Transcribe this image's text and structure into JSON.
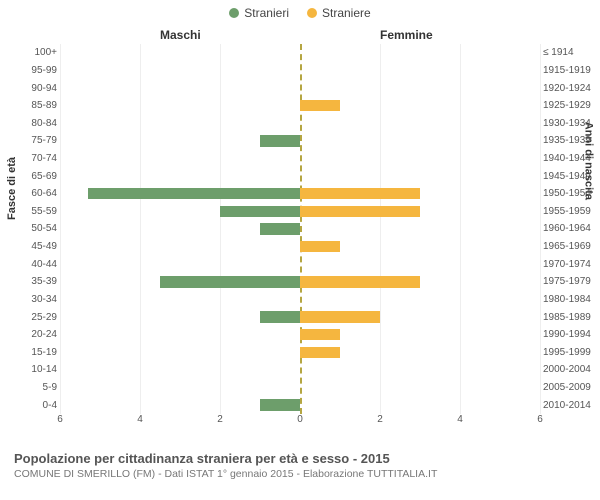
{
  "legend": {
    "male": {
      "label": "Stranieri",
      "color": "#6d9e6b"
    },
    "female": {
      "label": "Straniere",
      "color": "#f5b63f"
    }
  },
  "gender_headers": {
    "male": "Maschi",
    "female": "Femmine"
  },
  "axis_titles": {
    "left": "Fasce di età",
    "right": "Anni di nascita"
  },
  "chart": {
    "type": "pyramid-bar",
    "background_color": "#ffffff",
    "grid_color": "#eeeeee",
    "centerline_color": "#b5a642",
    "male_color": "#6d9e6b",
    "female_color": "#f5b63f",
    "xmax": 6,
    "xticks": [
      6,
      4,
      2,
      0,
      2,
      4,
      6
    ],
    "rows": [
      {
        "age": "100+",
        "birth": "≤ 1914",
        "m": 0,
        "f": 0
      },
      {
        "age": "95-99",
        "birth": "1915-1919",
        "m": 0,
        "f": 0
      },
      {
        "age": "90-94",
        "birth": "1920-1924",
        "m": 0,
        "f": 0
      },
      {
        "age": "85-89",
        "birth": "1925-1929",
        "m": 0,
        "f": 1
      },
      {
        "age": "80-84",
        "birth": "1930-1934",
        "m": 0,
        "f": 0
      },
      {
        "age": "75-79",
        "birth": "1935-1939",
        "m": 1,
        "f": 0
      },
      {
        "age": "70-74",
        "birth": "1940-1944",
        "m": 0,
        "f": 0
      },
      {
        "age": "65-69",
        "birth": "1945-1949",
        "m": 0,
        "f": 0
      },
      {
        "age": "60-64",
        "birth": "1950-1954",
        "m": 5.3,
        "f": 3
      },
      {
        "age": "55-59",
        "birth": "1955-1959",
        "m": 2,
        "f": 3
      },
      {
        "age": "50-54",
        "birth": "1960-1964",
        "m": 1,
        "f": 0
      },
      {
        "age": "45-49",
        "birth": "1965-1969",
        "m": 0,
        "f": 1
      },
      {
        "age": "40-44",
        "birth": "1970-1974",
        "m": 0,
        "f": 0
      },
      {
        "age": "35-39",
        "birth": "1975-1979",
        "m": 3.5,
        "f": 3
      },
      {
        "age": "30-34",
        "birth": "1980-1984",
        "m": 0,
        "f": 0
      },
      {
        "age": "25-29",
        "birth": "1985-1989",
        "m": 1,
        "f": 2
      },
      {
        "age": "20-24",
        "birth": "1990-1994",
        "m": 0,
        "f": 1
      },
      {
        "age": "15-19",
        "birth": "1995-1999",
        "m": 0,
        "f": 1
      },
      {
        "age": "10-14",
        "birth": "2000-2004",
        "m": 0,
        "f": 0
      },
      {
        "age": "5-9",
        "birth": "2005-2009",
        "m": 0,
        "f": 0
      },
      {
        "age": "0-4",
        "birth": "2010-2014",
        "m": 1,
        "f": 0
      }
    ]
  },
  "footer": {
    "title": "Popolazione per cittadinanza straniera per età e sesso - 2015",
    "subtitle": "COMUNE DI SMERILLO (FM) - Dati ISTAT 1° gennaio 2015 - Elaborazione TUTTITALIA.IT"
  }
}
